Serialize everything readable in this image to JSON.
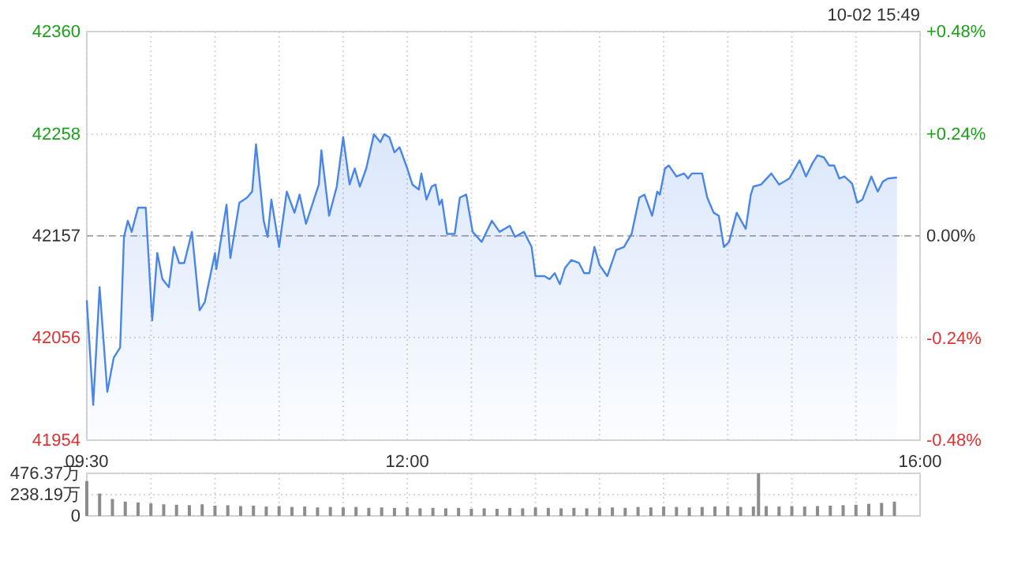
{
  "chart_data": [
    {
      "type": "area",
      "subtitle": "10-02 15:49",
      "color": "#4a86e8",
      "x": [
        9.5,
        9.55,
        9.6,
        9.66,
        9.71,
        9.76,
        9.79,
        9.82,
        9.85,
        9.9,
        9.96,
        10.01,
        10.05,
        10.09,
        10.14,
        10.18,
        10.22,
        10.26,
        10.32,
        10.38,
        10.42,
        10.5,
        10.51,
        10.57,
        10.59,
        10.62,
        10.69,
        10.75,
        10.79,
        10.82,
        10.88,
        10.91,
        10.94,
        11.0,
        11.06,
        11.12,
        11.16,
        11.21,
        11.31,
        11.33,
        11.39,
        11.45,
        11.5,
        11.55,
        11.59,
        11.63,
        11.68,
        11.74,
        11.79,
        11.82,
        11.86,
        11.9,
        11.94,
        12.0,
        12.04,
        12.09,
        12.11,
        12.15,
        12.19,
        12.22,
        12.25,
        12.27,
        12.31,
        12.37,
        12.41,
        12.46,
        12.51,
        12.58,
        12.66,
        12.72,
        12.8,
        12.84,
        12.91,
        12.97,
        13.0,
        13.07,
        13.11,
        13.15,
        13.19,
        13.23,
        13.28,
        13.34,
        13.38,
        13.42,
        13.46,
        13.5,
        13.56,
        13.63,
        13.69,
        13.75,
        13.81,
        13.85,
        13.91,
        13.95,
        13.97,
        14.01,
        14.04,
        14.1,
        14.16,
        14.19,
        14.22,
        14.26,
        14.3,
        14.34,
        14.39,
        14.43,
        14.47,
        14.51,
        14.57,
        14.64,
        14.68,
        14.7,
        14.76,
        14.84,
        14.9,
        14.98,
        15.06,
        15.11,
        15.16,
        15.2,
        15.25,
        15.29,
        15.33,
        15.37,
        15.41,
        15.47,
        15.51,
        15.55,
        15.58,
        15.62,
        15.67,
        15.71,
        15.75,
        15.82
      ],
      "values": [
        42093,
        41989,
        42106,
        42002,
        42036,
        42046,
        42156,
        42172,
        42161,
        42185,
        42185,
        42073,
        42140,
        42114,
        42106,
        42146,
        42130,
        42130,
        42161,
        42083,
        42091,
        42140,
        42124,
        42172,
        42188,
        42135,
        42190,
        42195,
        42201,
        42248,
        42172,
        42156,
        42193,
        42146,
        42201,
        42180,
        42198,
        42169,
        42208,
        42242,
        42177,
        42206,
        42255,
        42208,
        42224,
        42206,
        42224,
        42258,
        42250,
        42258,
        42255,
        42240,
        42245,
        42224,
        42208,
        42203,
        42219,
        42193,
        42206,
        42208,
        42188,
        42193,
        42159,
        42159,
        42195,
        42198,
        42161,
        42151,
        42172,
        42161,
        42167,
        42156,
        42161,
        42146,
        42117,
        42117,
        42114,
        42120,
        42109,
        42125,
        42133,
        42130,
        42120,
        42120,
        42146,
        42128,
        42117,
        42143,
        42146,
        42159,
        42195,
        42198,
        42177,
        42201,
        42198,
        42224,
        42227,
        42216,
        42219,
        42214,
        42219,
        42219,
        42219,
        42195,
        42180,
        42177,
        42146,
        42151,
        42180,
        42164,
        42198,
        42206,
        42208,
        42219,
        42208,
        42214,
        42232,
        42216,
        42229,
        42237,
        42235,
        42227,
        42227,
        42214,
        42216,
        42209,
        42190,
        42193,
        42203,
        42216,
        42201,
        42211,
        42214,
        42215
      ],
      "xlim": [
        9.5,
        16
      ],
      "xticks": [
        {
          "value": 9.5,
          "label": "09:30"
        },
        {
          "value": 10,
          "label": null
        },
        {
          "value": 10.5,
          "label": null
        },
        {
          "value": 11,
          "label": null
        },
        {
          "value": 11.5,
          "label": null
        },
        {
          "value": 12,
          "label": "12:00"
        },
        {
          "value": 12.5,
          "label": null
        },
        {
          "value": 13,
          "label": null
        },
        {
          "value": 13.5,
          "label": null
        },
        {
          "value": 14,
          "label": null
        },
        {
          "value": 14.5,
          "label": null
        },
        {
          "value": 15,
          "label": null
        },
        {
          "value": 15.5,
          "label": null
        },
        {
          "value": 16,
          "label": "16:00"
        }
      ],
      "ylim": [
        41954,
        42360
      ],
      "yticks": [
        41954,
        42056,
        42157,
        42258,
        42360
      ],
      "y2lim": [
        -0.48,
        0.48
      ],
      "y2ticks": [
        {
          "value": -0.48,
          "label": "-0.48%"
        },
        {
          "value": -0.24,
          "label": "-0.24%"
        },
        {
          "value": 0,
          "label": "0.00%"
        },
        {
          "value": 0.24,
          "label": "+0.24%"
        },
        {
          "value": 0.48,
          "label": "+0.48%"
        }
      ],
      "ref_lines": [
        {
          "axis": "y",
          "value": 42157,
          "color": "#aaaaaa",
          "line_style": "dashed"
        }
      ],
      "grid": true
    },
    {
      "type": "bar",
      "color": "#8c8c8c",
      "tick_labels": "y",
      "grid": true,
      "x": [
        9.5,
        9.6,
        9.7,
        9.8,
        9.9,
        10.0,
        10.1,
        10.2,
        10.3,
        10.4,
        10.5,
        10.6,
        10.7,
        10.8,
        10.9,
        11.0,
        11.1,
        11.2,
        11.3,
        11.4,
        11.5,
        11.6,
        11.7,
        11.8,
        11.9,
        12.0,
        12.1,
        12.2,
        12.3,
        12.4,
        12.5,
        12.6,
        12.7,
        12.8,
        12.9,
        13.0,
        13.1,
        13.2,
        13.3,
        13.4,
        13.5,
        13.6,
        13.7,
        13.8,
        13.9,
        14.0,
        14.1,
        14.2,
        14.3,
        14.4,
        14.5,
        14.6,
        14.7,
        14.74,
        14.8,
        14.9,
        15.0,
        15.1,
        15.2,
        15.3,
        15.4,
        15.5,
        15.6,
        15.7,
        15.8
      ],
      "values": [
        390,
        250,
        190,
        160,
        150,
        140,
        130,
        125,
        120,
        130,
        115,
        120,
        110,
        115,
        105,
        110,
        100,
        105,
        95,
        100,
        95,
        100,
        90,
        95,
        90,
        95,
        85,
        90,
        85,
        90,
        80,
        85,
        80,
        90,
        85,
        95,
        90,
        85,
        90,
        85,
        90,
        95,
        90,
        100,
        95,
        105,
        100,
        95,
        100,
        105,
        110,
        100,
        105,
        476.37,
        110,
        105,
        110,
        105,
        110,
        115,
        120,
        125,
        135,
        145,
        160
      ],
      "xlim": [
        9.5,
        16
      ],
      "xticks": [
        9.5,
        10,
        10.5,
        11,
        11.5,
        12,
        12.5,
        13,
        13.5,
        14,
        14.5,
        15,
        15.5,
        16
      ],
      "ylim": [
        0,
        476.37
      ],
      "yticks": [
        0,
        {
          "value": 238.19,
          "label": "238.19万"
        },
        {
          "value": 476.37,
          "label": "476.37万"
        }
      ]
    }
  ]
}
